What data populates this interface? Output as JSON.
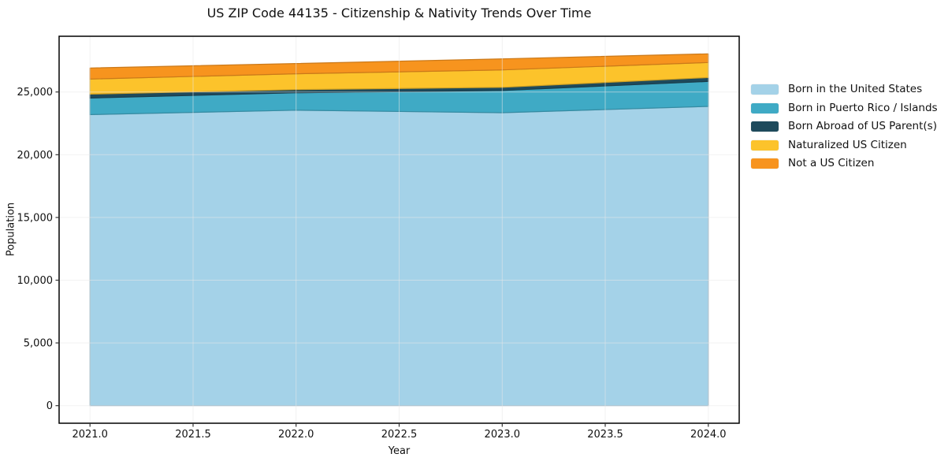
{
  "chart_data": {
    "type": "area",
    "stacked": true,
    "title": "US ZIP Code 44135 - Citizenship & Nativity Trends Over Time",
    "xlabel": "Year",
    "ylabel": "Population",
    "x": [
      2021,
      2022,
      2023,
      2024
    ],
    "series": [
      {
        "name": "Born in the United States",
        "color": "#A4D2E8",
        "values": [
          23200,
          23550,
          23350,
          23850
        ]
      },
      {
        "name": "Born in Puerto Rico / Islands",
        "color": "#3FAAC5",
        "values": [
          1320,
          1390,
          1770,
          1990
        ]
      },
      {
        "name": "Born Abroad of US Parent(s)",
        "color": "#1E4A5C",
        "values": [
          310,
          250,
          250,
          310
        ]
      },
      {
        "name": "Naturalized US Citizen",
        "color": "#FCC32B",
        "values": [
          1200,
          1260,
          1390,
          1200
        ]
      },
      {
        "name": "Not a US Citizen",
        "color": "#F7941E",
        "values": [
          880,
          820,
          880,
          690
        ]
      }
    ],
    "xlim": [
      2020.85,
      2024.15
    ],
    "ylim": [
      -1402,
      29442
    ],
    "xticks": {
      "values": [
        2021,
        2021.5,
        2022,
        2022.5,
        2023,
        2023.5,
        2024
      ],
      "labels": [
        "2021.0",
        "2021.5",
        "2022.0",
        "2022.5",
        "2023.0",
        "2023.5",
        "2024.0"
      ]
    },
    "yticks": {
      "values": [
        0,
        5000,
        10000,
        15000,
        20000,
        25000
      ],
      "labels": [
        "0",
        "5,000",
        "10,000",
        "15,000",
        "20,000",
        "25,000"
      ]
    },
    "grid": true,
    "legend_position": "outside-right",
    "colors": {
      "spine": "#000000",
      "gridline": "#e8e8e8",
      "tick": "#333333",
      "text": "#111111"
    }
  }
}
